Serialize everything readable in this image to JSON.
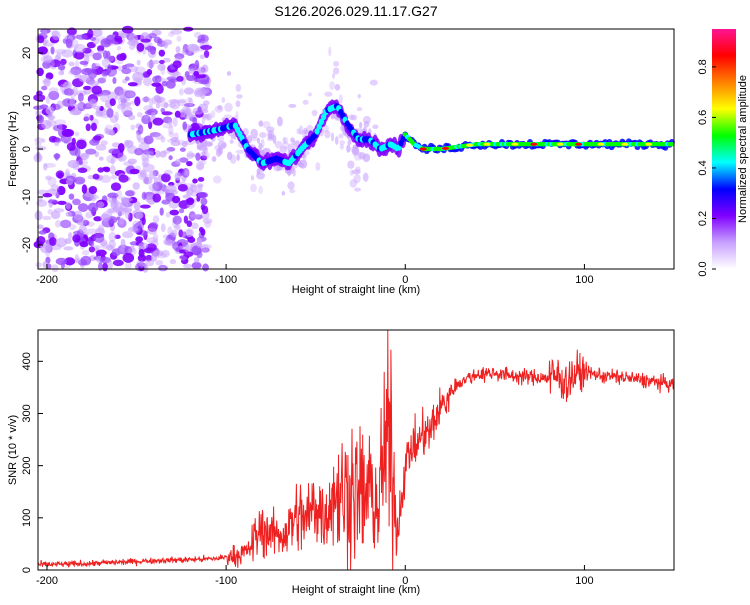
{
  "title": "S126.2026.029.11.17.G27",
  "colors": {
    "snr_line": "#ee2020",
    "axis": "#000000",
    "colormap": [
      "#ffffff",
      "#c8a0ff",
      "#8000ff",
      "#0000ff",
      "#00ffff",
      "#00ff00",
      "#ffff00",
      "#ff8000",
      "#ff0000",
      "#ff1493"
    ]
  },
  "chart_data": [
    {
      "type": "heatmap",
      "name": "spectrogram",
      "xlabel": "Height of straight line (km)",
      "ylabel": "Frequency (Hz)",
      "xlim": [
        -205,
        150
      ],
      "ylim": [
        -25,
        25
      ],
      "xticks": [
        -200,
        -100,
        0,
        100
      ],
      "yticks": [
        -20,
        -10,
        0,
        10,
        20
      ],
      "grid": false,
      "ridge": {
        "x": [
          -120,
          -105,
          -95,
          -88,
          -80,
          -72,
          -65,
          -58,
          -50,
          -44,
          -38,
          -32,
          -26,
          -20,
          -14,
          -8,
          -4,
          0,
          5,
          10,
          20,
          40,
          60,
          80,
          100,
          120,
          150
        ],
        "freq": [
          3,
          4,
          5,
          0,
          -3,
          -2,
          -3,
          0,
          3,
          8,
          9,
          5,
          2,
          2,
          0,
          1,
          0,
          3,
          1,
          0,
          0,
          1,
          1,
          1,
          1,
          1,
          1
        ]
      },
      "colorbar": {
        "label": "Normalized spectral amplitude",
        "ticks": [
          "0.0",
          "0.2",
          "0.4",
          "0.6",
          "0.8"
        ],
        "range": [
          0,
          0.95
        ]
      }
    },
    {
      "type": "line",
      "name": "snr",
      "xlabel": "Height of straight line (km)",
      "ylabel": "SNR (10 * v/v)",
      "xlim": [
        -205,
        150
      ],
      "ylim": [
        0,
        460
      ],
      "xticks": [
        -200,
        -100,
        0,
        100
      ],
      "yticks": [
        0,
        100,
        200,
        300,
        400
      ],
      "grid": false,
      "series": [
        {
          "name": "SNR",
          "x": [
            -205,
            -180,
            -160,
            -140,
            -120,
            -105,
            -95,
            -88,
            -84,
            -80,
            -75,
            -70,
            -65,
            -60,
            -55,
            -50,
            -45,
            -40,
            -35,
            -30,
            -25,
            -20,
            -15,
            -12,
            -10,
            -7,
            -5,
            -3,
            0,
            3,
            6,
            10,
            14,
            18,
            22,
            26,
            30,
            40,
            50,
            60,
            70,
            80,
            85,
            90,
            95,
            100,
            110,
            120,
            130,
            140,
            150
          ],
          "values": [
            10,
            12,
            15,
            18,
            20,
            22,
            28,
            35,
            60,
            80,
            70,
            65,
            80,
            105,
            95,
            130,
            100,
            150,
            140,
            160,
            140,
            150,
            120,
            210,
            260,
            200,
            70,
            110,
            200,
            230,
            240,
            260,
            265,
            300,
            320,
            345,
            360,
            375,
            378,
            372,
            370,
            368,
            372,
            360,
            375,
            380,
            372,
            370,
            365,
            360,
            355
          ]
        }
      ]
    }
  ]
}
